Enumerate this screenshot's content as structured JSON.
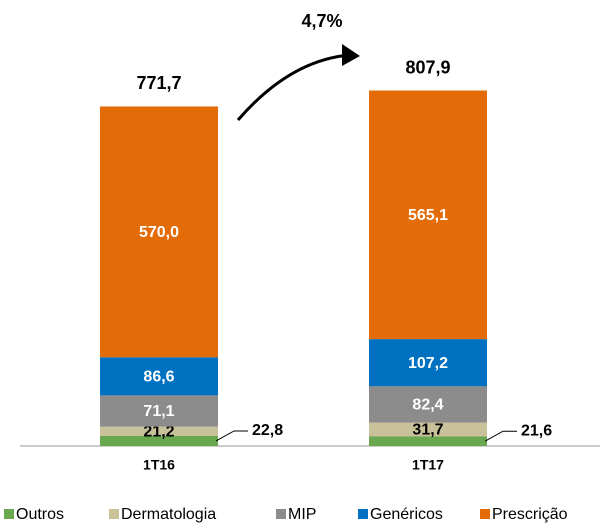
{
  "chart_data": {
    "type": "stacked_bar",
    "categories": [
      "1T16",
      "1T17"
    ],
    "series": [
      {
        "name": "Outros",
        "color": "#6aa84f",
        "values": [
          22.8,
          21.6
        ],
        "value_labels": [
          "22,8",
          "21,6"
        ]
      },
      {
        "name": "Dermatologia",
        "color": "#c9c19a",
        "values": [
          21.2,
          31.7
        ],
        "value_labels": [
          "21,2",
          "31,7"
        ]
      },
      {
        "name": "MIP",
        "color": "#8c8c8c",
        "values": [
          71.1,
          82.4
        ],
        "value_labels": [
          "71,1",
          "82,4"
        ]
      },
      {
        "name": "Genéricos",
        "color": "#0070c0",
        "values": [
          86.6,
          107.2
        ],
        "value_labels": [
          "86,6",
          "107,2"
        ]
      },
      {
        "name": "Prescrição",
        "color": "#e36c09",
        "values": [
          570.0,
          565.1
        ],
        "value_labels": [
          "570,0",
          "565,1"
        ]
      }
    ],
    "totals": {
      "values": [
        771.7,
        807.9
      ],
      "value_labels": [
        "771,7",
        "807,9"
      ]
    },
    "annotation": "4,7%"
  }
}
